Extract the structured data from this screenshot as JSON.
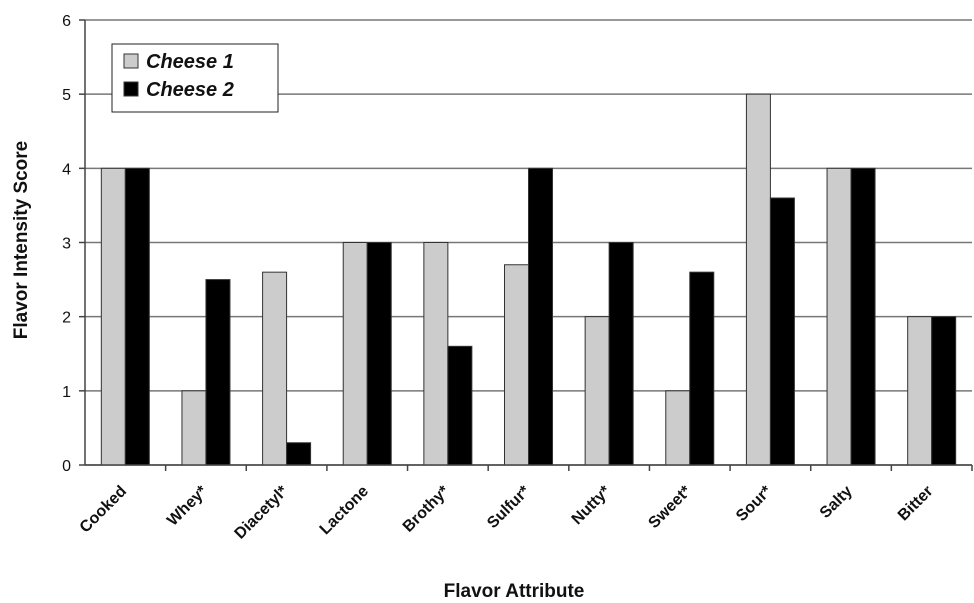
{
  "chart_data": {
    "type": "bar",
    "title": "",
    "xlabel": "Flavor Attribute",
    "ylabel": "Flavor Intensity Score",
    "ylim": [
      0,
      6
    ],
    "yticks": [
      0,
      1,
      2,
      3,
      4,
      5,
      6
    ],
    "grid": true,
    "legend_position": "top-left",
    "categories": [
      "Cooked",
      "Whey*",
      "Diacetyl*",
      "Lactone",
      "Brothy*",
      "Sulfur*",
      "Nutty*",
      "Sweet*",
      "Sour*",
      "Salty",
      "Bitter"
    ],
    "series": [
      {
        "name": "Cheese 1",
        "color": "#cccccc",
        "values": [
          4,
          1,
          2.6,
          3,
          3,
          2.7,
          2,
          1,
          5,
          4,
          2
        ]
      },
      {
        "name": "Cheese 2",
        "color": "#000000",
        "values": [
          4,
          2.5,
          0.3,
          3,
          1.6,
          4,
          3,
          2.6,
          3.6,
          4,
          2
        ]
      }
    ]
  }
}
